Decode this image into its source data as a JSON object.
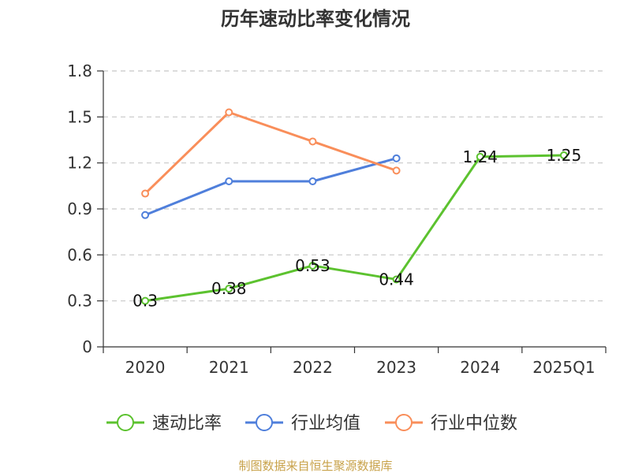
{
  "chart_data": {
    "type": "line",
    "title": "历年速动比率变化情况",
    "categories": [
      "2020",
      "2021",
      "2022",
      "2023",
      "2024",
      "2025Q1"
    ],
    "ylim": [
      0,
      1.8
    ],
    "yticks": [
      "0",
      "0.3",
      "0.6",
      "0.9",
      "1.2",
      "1.5",
      "1.8"
    ],
    "grid": "horizontal-dashed",
    "legend_position": "bottom",
    "series": [
      {
        "name": "速动比率",
        "color": "#5cc22f",
        "values": [
          0.3,
          0.38,
          0.53,
          0.44,
          1.24,
          1.25
        ],
        "data_labels": [
          "0.3",
          "0.38",
          "0.53",
          "0.44",
          "1.24",
          "1.25"
        ]
      },
      {
        "name": "行业均值",
        "color": "#4f7fdb",
        "values": [
          0.86,
          1.08,
          1.08,
          1.23,
          null,
          null
        ]
      },
      {
        "name": "行业中位数",
        "color": "#f98e5a",
        "values": [
          1.0,
          1.53,
          1.34,
          1.15,
          null,
          null
        ]
      }
    ]
  },
  "source_text": "制图数据来自恒生聚源数据库",
  "source_color": "#c8a24a"
}
